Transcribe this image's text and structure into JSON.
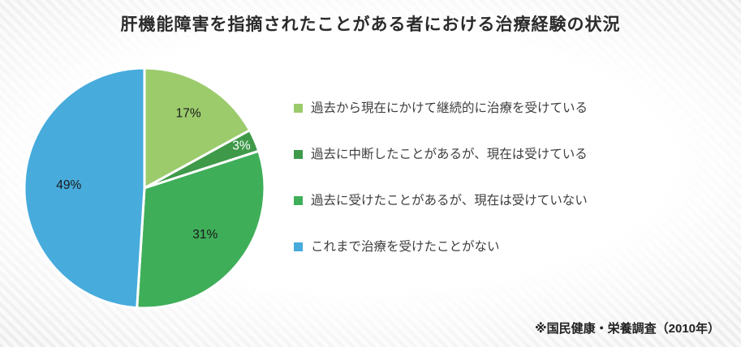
{
  "title": "肝機能障害を指摘されたことがある者における治療経験の状況",
  "footnote": "※国民健康・栄養調査（2010年）",
  "chart_data": {
    "type": "pie",
    "title": "肝機能障害を指摘されたことがある者における治療経験の状況",
    "start_angle_deg": -90,
    "direction": "clockwise",
    "legend_position": "right",
    "slices": [
      {
        "label": "過去から現在にかけて継続的に治療を受けている",
        "value": 17,
        "data_label": "17%",
        "color": "#9CCB6C",
        "label_color": "#1a1a1a",
        "label_radius": 0.72
      },
      {
        "label": "過去に中断したことがあるが、現在は受けている",
        "value": 3,
        "data_label": "3%",
        "color": "#3E9A49",
        "label_color": "#ffffff",
        "label_radius": 0.88
      },
      {
        "label": "過去に受けたことがあるが、現在は受けていない",
        "value": 31,
        "data_label": "31%",
        "color": "#3FAE59",
        "label_color": "#1a1a1a",
        "label_radius": 0.64
      },
      {
        "label": "これまで治療を受けたことがない",
        "value": 49,
        "data_label": "49%",
        "color": "#47ABDC",
        "label_color": "#1a1a1a",
        "label_radius": 0.63
      }
    ]
  }
}
